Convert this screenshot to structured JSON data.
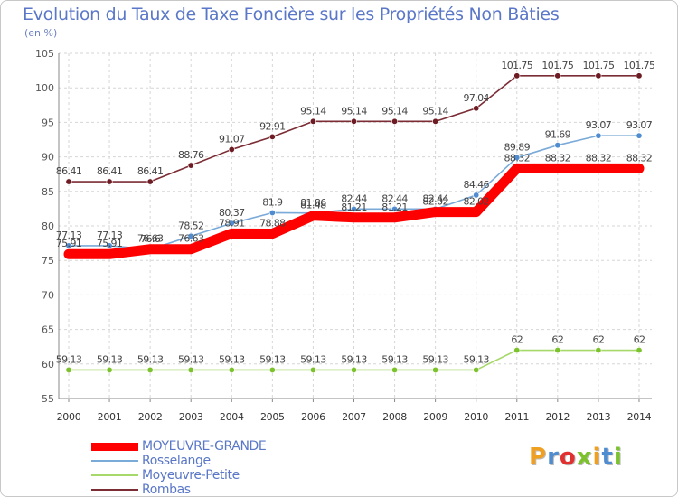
{
  "chart_data": {
    "type": "line",
    "title": "Evolution du Taux de Taxe Foncière sur les Propriétés Non Bâties",
    "unit_label": "(en %)",
    "x": [
      "2000",
      "2001",
      "2002",
      "2003",
      "2004",
      "2005",
      "2006",
      "2007",
      "2008",
      "2009",
      "2010",
      "2011",
      "2012",
      "2013",
      "2014"
    ],
    "ylim": [
      55,
      105
    ],
    "yticks": [
      55,
      60,
      65,
      70,
      75,
      80,
      85,
      90,
      95,
      100,
      105
    ],
    "series": [
      {
        "name": "Rombas",
        "color": "#7b2c34",
        "marker": "#6d1c24",
        "values": [
          86.41,
          86.41,
          86.41,
          88.76,
          91.07,
          92.91,
          95.14,
          95.14,
          95.14,
          95.14,
          97.04,
          101.75,
          101.75,
          101.75,
          101.75
        ],
        "labels": [
          "86.41",
          "86.41",
          "86.41",
          "88.76",
          "91.07",
          "92.91",
          "95.14",
          "95.14",
          "95.14",
          "95.14",
          "97.04",
          "101.75",
          "101.75",
          "101.75",
          "101.75"
        ]
      },
      {
        "name": "Moyeuvre-Petite",
        "color": "#a6d86a",
        "marker": "#7bc22c",
        "values": [
          59.13,
          59.13,
          59.13,
          59.13,
          59.13,
          59.13,
          59.13,
          59.13,
          59.13,
          59.13,
          59.13,
          62,
          62,
          62,
          62
        ],
        "labels": [
          "59.13",
          "59.13",
          "59.13",
          "59.13",
          "59.13",
          "59.13",
          "59.13",
          "59.13",
          "59.13",
          "59.13",
          "59.13",
          "62",
          "62",
          "62",
          "62"
        ]
      },
      {
        "name": "Rosselange",
        "color": "#7aaad8",
        "marker": "#4f8cd0",
        "values": [
          77.13,
          77.13,
          76.6,
          78.52,
          80.37,
          81.9,
          81.86,
          82.44,
          82.44,
          82.44,
          84.46,
          89.89,
          91.69,
          93.07,
          93.07
        ],
        "labels": [
          "77.13",
          "77.13",
          "76.6",
          "78.52",
          "80.37",
          "81.9",
          "81.86",
          "82.44",
          "82.44",
          "82.44",
          "84.46",
          "89.89",
          "91.69",
          "93.07",
          "93.07"
        ]
      },
      {
        "name": "MOYEUVRE-GRANDE",
        "color": "#ff0000",
        "marker": "#ff0000",
        "values": [
          75.91,
          75.91,
          76.63,
          76.63,
          78.91,
          78.88,
          81.48,
          81.21,
          81.21,
          82.02,
          82.02,
          88.32,
          88.32,
          88.32,
          88.32
        ],
        "labels": [
          "75.91",
          "75.91",
          "76.63",
          "76.63",
          "78.91",
          "78.88",
          "81.48",
          "81.21",
          "81.21",
          "82.02",
          "82.02",
          "88.32",
          "88.32",
          "88.32",
          "88.32"
        ]
      }
    ],
    "legend": [
      {
        "name": "MOYEUVRE-GRANDE",
        "color": "#ff0000",
        "thickness": "thick"
      },
      {
        "name": "Rosselange",
        "color": "#7aaad8",
        "thickness": "thin"
      },
      {
        "name": "Moyeuvre-Petite",
        "color": "#a6d86a",
        "thickness": "thin"
      },
      {
        "name": "Rombas",
        "color": "#7b2c34",
        "thickness": "thin"
      }
    ],
    "logo": "Proxiti"
  }
}
